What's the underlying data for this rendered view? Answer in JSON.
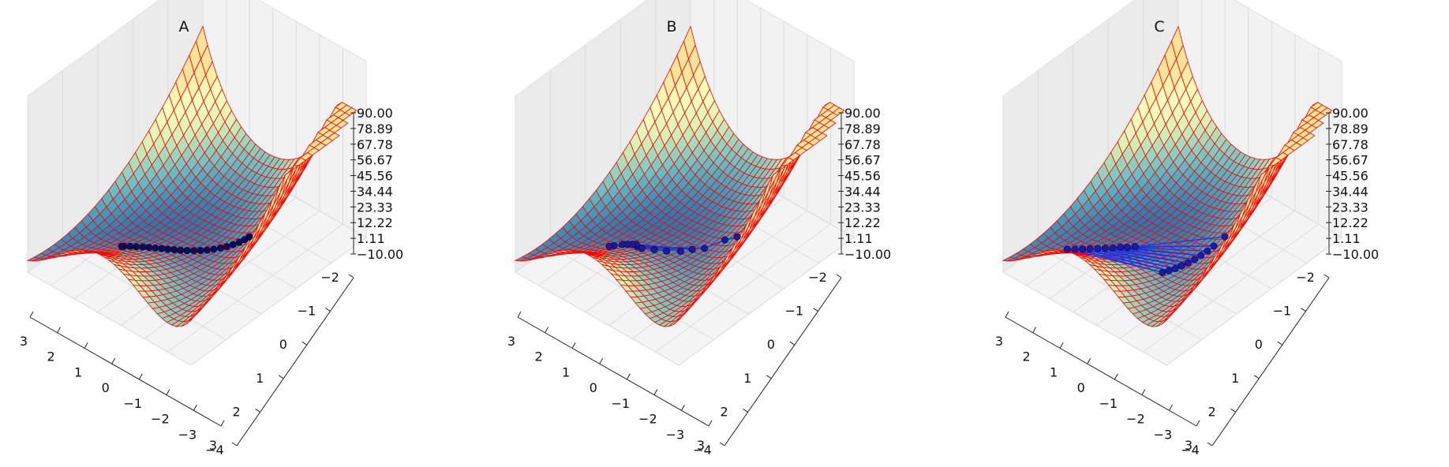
{
  "chart_data": [
    {
      "type": "surface3d",
      "title": "A",
      "surface": {
        "fill_colormap": [
          "#1f6fb0",
          "#67bfc4",
          "#d7f0b6",
          "#ffffbf",
          "#fde29a"
        ],
        "wire_color": "#ff0000"
      },
      "path_color_line": "#1a1a8c",
      "path_color_marker": "#0a0a5a",
      "z_ticks": [
        "90.00",
        "78.89",
        "67.78",
        "56.67",
        "45.56",
        "34.44",
        "23.33",
        "12.22",
        "1.11",
        "−10.00"
      ],
      "x_ticks": [
        "3",
        "2",
        "1",
        "0",
        "−1",
        "−2",
        "−3",
        "−4"
      ],
      "y_ticks": [
        "−2",
        "−1",
        "0",
        "1",
        "2",
        "3"
      ],
      "path": [
        [
          -2.0,
          0.0
        ],
        [
          -1.88,
          0.06
        ],
        [
          -1.75,
          0.12
        ],
        [
          -1.6,
          0.2
        ],
        [
          -1.45,
          0.28
        ],
        [
          -1.3,
          0.36
        ],
        [
          -1.15,
          0.45
        ],
        [
          -1.0,
          0.54
        ],
        [
          -0.85,
          0.63
        ],
        [
          -0.7,
          0.72
        ],
        [
          -0.55,
          0.81
        ],
        [
          -0.4,
          0.9
        ],
        [
          -0.25,
          0.98
        ],
        [
          -0.1,
          1.06
        ],
        [
          0.05,
          1.14
        ],
        [
          0.2,
          1.22
        ],
        [
          0.35,
          1.3
        ],
        [
          0.5,
          1.38
        ],
        [
          0.65,
          1.46
        ],
        [
          0.8,
          1.54
        ],
        [
          0.95,
          1.62
        ],
        [
          1.0,
          1.65
        ]
      ]
    },
    {
      "type": "surface3d",
      "title": "B",
      "surface": {
        "fill_colormap": [
          "#1f6fb0",
          "#67bfc4",
          "#d7f0b6",
          "#ffffbf",
          "#fde29a"
        ],
        "wire_color": "#ff0000"
      },
      "path_color_line": "#2233cc",
      "path_color_marker": "#1a1aa0",
      "z_ticks": [
        "90.00",
        "78.89",
        "67.78",
        "56.67",
        "45.56",
        "34.44",
        "23.33",
        "12.22",
        "1.11",
        "−10.00"
      ],
      "x_ticks": [
        "3",
        "2",
        "1",
        "0",
        "−1",
        "−2",
        "−3",
        "−4"
      ],
      "y_ticks": [
        "−2",
        "−1",
        "0",
        "1",
        "2",
        "3"
      ],
      "path": [
        [
          -2.0,
          0.0
        ],
        [
          -1.55,
          0.05
        ],
        [
          -1.2,
          0.4
        ],
        [
          0.4,
          1.25
        ],
        [
          -0.9,
          0.55
        ],
        [
          0.55,
          1.18
        ],
        [
          -0.7,
          0.75
        ],
        [
          0.65,
          1.22
        ],
        [
          -0.4,
          0.95
        ],
        [
          0.75,
          1.3
        ],
        [
          -0.1,
          1.1
        ],
        [
          0.85,
          1.38
        ],
        [
          0.2,
          1.25
        ],
        [
          0.95,
          1.55
        ],
        [
          1.0,
          1.65
        ]
      ]
    },
    {
      "type": "surface3d",
      "title": "C",
      "surface": {
        "fill_colormap": [
          "#1f6fb0",
          "#67bfc4",
          "#d7f0b6",
          "#ffffbf",
          "#fde29a"
        ],
        "wire_color": "#ff0000"
      },
      "path_color_line": "#2233dd",
      "path_color_marker": "#1a1ab0",
      "z_ticks": [
        "90.00",
        "78.89",
        "67.78",
        "56.67",
        "45.56",
        "34.44",
        "23.33",
        "12.22",
        "1.11",
        "−10.00"
      ],
      "x_ticks": [
        "3",
        "2",
        "1",
        "0",
        "−1",
        "−2",
        "−3",
        "−4"
      ],
      "y_ticks": [
        "−2",
        "−1",
        "0",
        "1",
        "2",
        "3"
      ],
      "path": [
        [
          -2.0,
          0.0
        ],
        [
          0.2,
          1.1
        ],
        [
          -1.9,
          0.25
        ],
        [
          0.3,
          1.25
        ],
        [
          -1.85,
          0.4
        ],
        [
          0.45,
          1.35
        ],
        [
          -1.8,
          0.55
        ],
        [
          0.55,
          1.5
        ],
        [
          -1.75,
          0.7
        ],
        [
          0.65,
          1.65
        ],
        [
          -1.7,
          0.85
        ],
        [
          0.75,
          1.8
        ],
        [
          -1.65,
          1.0
        ],
        [
          0.85,
          1.95
        ],
        [
          -1.6,
          1.15
        ],
        [
          0.95,
          2.1
        ],
        [
          -1.55,
          1.3
        ],
        [
          1.05,
          2.25
        ],
        [
          -1.5,
          1.45
        ],
        [
          1.15,
          2.4
        ]
      ]
    }
  ]
}
